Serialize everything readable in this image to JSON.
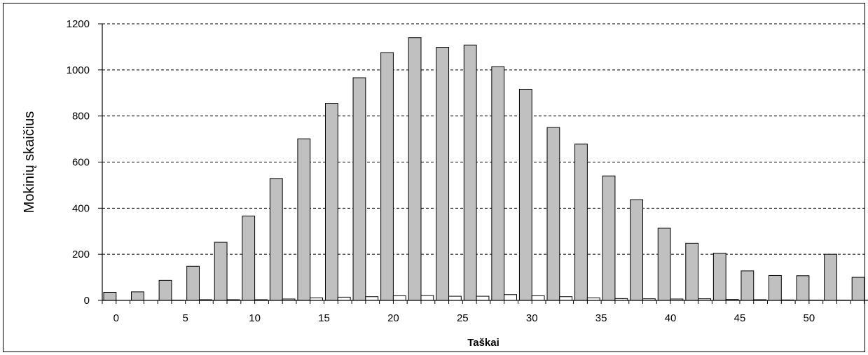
{
  "chart_data": {
    "type": "bar",
    "title": "",
    "xlabel": "Taškai",
    "ylabel": "Mokinių skaičius",
    "ylim": [
      0,
      1200
    ],
    "xlim": [
      -1,
      54
    ],
    "yticks": [
      0,
      200,
      400,
      600,
      800,
      1000,
      1200
    ],
    "xticks": [
      0,
      5,
      10,
      15,
      20,
      25,
      30,
      35,
      40,
      45,
      50
    ],
    "grid": "horizontal-dashed",
    "legend": "none",
    "colors": {
      "series1": "#c0c0c0",
      "series2": "#ffffff",
      "grid": "#000000"
    },
    "series": [
      {
        "x": [
          0,
          2,
          4,
          6,
          8,
          10,
          12,
          14,
          16,
          18,
          20,
          22,
          24,
          26,
          28,
          30,
          32,
          34,
          36,
          38,
          40,
          42,
          44,
          46,
          48,
          50,
          52,
          54
        ],
        "values": [
          35,
          37,
          87,
          148,
          252,
          366,
          529,
          701,
          855,
          966,
          1075,
          1140,
          1098,
          1108,
          1014,
          916,
          750,
          678,
          540,
          437,
          313,
          248,
          205,
          128,
          108,
          107,
          200,
          100
        ]
      },
      {
        "x": [
          0,
          2,
          4,
          6,
          8,
          10,
          12,
          14,
          16,
          18,
          20,
          22,
          24,
          26,
          28,
          30,
          32,
          34,
          36,
          38,
          40,
          42,
          44,
          46,
          48,
          50,
          52,
          54
        ],
        "values": [
          0,
          0,
          1,
          3,
          3,
          3,
          6,
          11,
          14,
          16,
          20,
          21,
          18,
          18,
          25,
          20,
          16,
          11,
          8,
          7,
          6,
          7,
          4,
          3,
          2,
          1,
          1,
          1
        ]
      }
    ]
  }
}
